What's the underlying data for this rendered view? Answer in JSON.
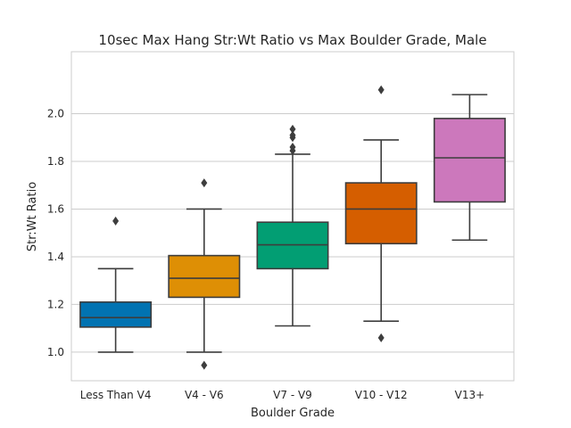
{
  "chart_data": {
    "type": "box",
    "title": "10sec Max Hang Str:Wt Ratio vs Max Boulder Grade, Male",
    "xlabel": "Boulder Grade",
    "ylabel": "Str:Wt Ratio",
    "ylim": [
      0.88,
      2.26
    ],
    "yticks": [
      "1.0",
      "1.2",
      "1.4",
      "1.6",
      "1.8",
      "2.0"
    ],
    "grid": true,
    "categories": [
      "Less Than V4",
      "V4 - V6",
      "V7 - V9",
      "V10 - V12",
      "V13+"
    ],
    "colors": [
      "#0173b2",
      "#de8f05",
      "#029e73",
      "#d55e00",
      "#cc78bc"
    ],
    "boxes": [
      {
        "whisker_low": 1.0,
        "q1": 1.105,
        "median": 1.145,
        "q3": 1.21,
        "whisker_high": 1.35,
        "outliers": [
          1.55
        ]
      },
      {
        "whisker_low": 1.0,
        "q1": 1.23,
        "median": 1.31,
        "q3": 1.405,
        "whisker_high": 1.6,
        "outliers": [
          0.945,
          1.71
        ]
      },
      {
        "whisker_low": 1.11,
        "q1": 1.35,
        "median": 1.45,
        "q3": 1.545,
        "whisker_high": 1.83,
        "outliers": [
          1.845,
          1.86,
          1.9,
          1.91,
          1.935
        ]
      },
      {
        "whisker_low": 1.13,
        "q1": 1.455,
        "median": 1.6,
        "q3": 1.71,
        "whisker_high": 1.89,
        "outliers": [
          1.06,
          2.1
        ]
      },
      {
        "whisker_low": 1.47,
        "q1": 1.63,
        "median": 1.815,
        "q3": 1.98,
        "whisker_high": 2.08,
        "outliers": []
      }
    ]
  }
}
